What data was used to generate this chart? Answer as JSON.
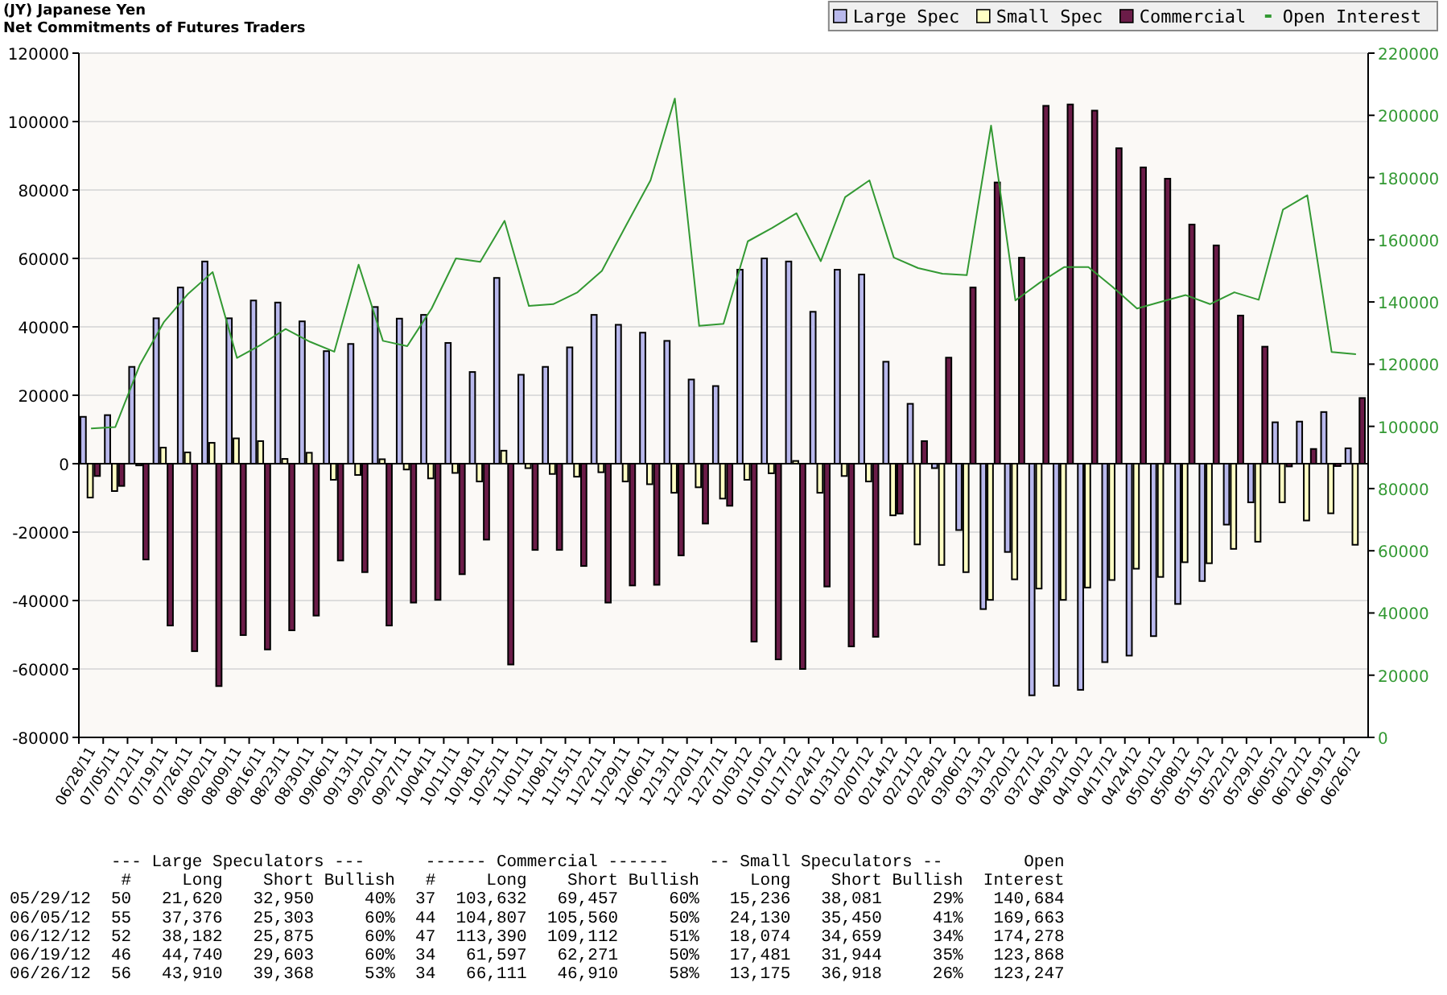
{
  "chart_data": {
    "type": "bar",
    "title": "(JY) Japanese Yen",
    "subtitle": "Net Commitments of Futures Traders",
    "categories": [
      "06/28/11",
      "07/05/11",
      "07/12/11",
      "07/19/11",
      "07/26/11",
      "08/02/11",
      "08/09/11",
      "08/16/11",
      "08/23/11",
      "08/30/11",
      "09/06/11",
      "09/13/11",
      "09/20/11",
      "09/27/11",
      "10/04/11",
      "10/11/11",
      "10/18/11",
      "10/25/11",
      "11/01/11",
      "11/08/11",
      "11/15/11",
      "11/22/11",
      "11/29/11",
      "12/06/11",
      "12/13/11",
      "12/20/11",
      "12/27/11",
      "01/03/12",
      "01/10/12",
      "01/17/12",
      "01/24/12",
      "01/31/12",
      "02/07/12",
      "02/14/12",
      "02/21/12",
      "02/28/12",
      "03/06/12",
      "03/13/12",
      "03/20/12",
      "03/27/12",
      "04/03/12",
      "04/10/12",
      "04/17/12",
      "04/24/12",
      "05/01/12",
      "05/08/12",
      "05/15/12",
      "05/22/12",
      "05/29/12",
      "06/05/12",
      "06/12/12",
      "06/19/12",
      "06/26/12"
    ],
    "series": [
      {
        "name": "Large Spec",
        "color": "#b8b8ec",
        "values": [
          13700,
          14200,
          28300,
          42500,
          51500,
          59100,
          42500,
          47700,
          47100,
          41600,
          32900,
          35000,
          45800,
          42400,
          43500,
          35300,
          26800,
          54300,
          26000,
          28300,
          34000,
          43500,
          40600,
          38300,
          35900,
          24600,
          22700,
          56700,
          60000,
          59100,
          44400,
          56700,
          55300,
          29800,
          17500,
          -1300,
          -19400,
          -42500,
          -25800,
          -67700,
          -64900,
          -66100,
          -58000,
          -56100,
          -50400,
          -41000,
          -34300,
          -17800,
          -11300,
          12100,
          12300,
          15100,
          4500
        ]
      },
      {
        "name": "Small Spec",
        "color": "#ffffc4",
        "values": [
          -9900,
          -8000,
          -500,
          4700,
          3300,
          6100,
          7400,
          6600,
          1400,
          3200,
          -4700,
          -3300,
          1300,
          -1700,
          -4300,
          -2700,
          -5200,
          3800,
          -1300,
          -3000,
          -3800,
          -2500,
          -5200,
          -6000,
          -8500,
          -6900,
          -10200,
          -4700,
          -2800,
          800,
          -8500,
          -3600,
          -5200,
          -15100,
          -23600,
          -29600,
          -31700,
          -39800,
          -33800,
          -36500,
          -39800,
          -36200,
          -34000,
          -30700,
          -33100,
          -28800,
          -29100,
          -24900,
          -22800,
          -11300,
          -16600,
          -14500,
          -23700
        ]
      },
      {
        "name": "Commercial",
        "color": "#6b1c48",
        "values": [
          -3600,
          -6500,
          -28000,
          -47300,
          -54800,
          -65000,
          -50100,
          -54300,
          -48700,
          -44400,
          -28300,
          -31700,
          -47300,
          -40600,
          -39800,
          -32300,
          -22200,
          -58700,
          -25200,
          -25200,
          -29900,
          -40600,
          -35600,
          -35400,
          -26800,
          -17500,
          -12300,
          -52000,
          -57200,
          -60000,
          -35900,
          -53400,
          -50600,
          -14600,
          6600,
          31000,
          51500,
          82200,
          60200,
          104600,
          105000,
          103200,
          92200,
          86600,
          83300,
          69900,
          63800,
          43300,
          34200,
          -800,
          4300,
          -700,
          19200
        ]
      },
      {
        "name": "Open Interest",
        "type": "line",
        "axis": "y2",
        "color": "#339933",
        "values": [
          99300,
          99800,
          119700,
          133600,
          142700,
          149600,
          122000,
          126300,
          131300,
          127200,
          124000,
          152000,
          127500,
          125800,
          137900,
          154000,
          152900,
          166100,
          138700,
          139300,
          143100,
          150000,
          164700,
          179100,
          205400,
          132300,
          133000,
          159500,
          163800,
          168500,
          153100,
          173700,
          179100,
          154300,
          150900,
          149100,
          148600,
          196700,
          140500,
          146200,
          151200,
          151200,
          144800,
          137900,
          140100,
          142200,
          139300,
          143100,
          140700,
          169700,
          174300,
          123900,
          123200
        ]
      }
    ],
    "ylim": [
      -80000,
      120000
    ],
    "yticks": [
      -80000,
      -60000,
      -40000,
      -20000,
      0,
      20000,
      40000,
      60000,
      80000,
      100000,
      120000
    ],
    "y2lim": [
      0,
      220000
    ],
    "y2ticks": [
      0,
      20000,
      40000,
      60000,
      80000,
      100000,
      120000,
      140000,
      160000,
      180000,
      200000,
      220000
    ],
    "grid": "y",
    "legend": "top right",
    "line_style": "solid",
    "marker": "none",
    "annotations": [
      "          --- Large Speculators ---      ------ Commercial ------    -- Small Speculators --        Open",
      "           #     Long    Short Bullish   #     Long    Short Bullish     Long    Short Bullish  Interest",
      "05/29/12  50   21,620   32,950     40%  37  103,632   69,457     60%   15,236   38,081     29%   140,684",
      "06/05/12  55   37,376   25,303     60%  44  104,807  105,560     50%   24,130   35,450     41%   169,663",
      "06/12/12  52   38,182   25,875     60%  47  113,390  109,112     51%   18,074   34,659     34%   174,278",
      "06/19/12  46   44,740   29,603     60%  34   61,597   62,271     50%   17,481   31,944     35%   123,868",
      "06/26/12  56   43,910   39,368     53%  34   66,111   46,910     58%   13,175   36,918     26%   123,247"
    ]
  }
}
